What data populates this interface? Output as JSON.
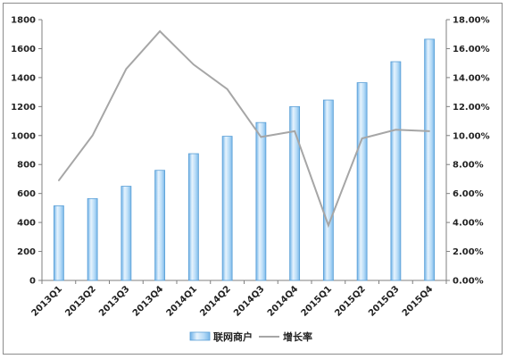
{
  "chart_data": {
    "type": "bar",
    "categories": [
      "2013Q1",
      "2013Q2",
      "2013Q3",
      "2013Q4",
      "2014Q1",
      "2014Q2",
      "2014Q3",
      "2014Q4",
      "2015Q1",
      "2015Q2",
      "2015Q3",
      "2015Q4"
    ],
    "series": [
      {
        "name": "联网商户",
        "type": "bar",
        "axis": "left",
        "color": "#9dcbf0",
        "values": [
          515,
          565,
          650,
          760,
          875,
          995,
          1090,
          1200,
          1245,
          1365,
          1510,
          1665
        ]
      },
      {
        "name": "增长率",
        "type": "line",
        "axis": "right",
        "color": "#a6a6a6",
        "values": [
          6.9,
          10.0,
          14.6,
          17.2,
          14.9,
          13.2,
          9.9,
          10.3,
          3.8,
          9.8,
          10.4,
          10.3
        ]
      }
    ],
    "ylim": [
      0,
      1800
    ],
    "y_ticks": [
      "0",
      "200",
      "400",
      "600",
      "800",
      "1000",
      "1200",
      "1400",
      "1600",
      "1800"
    ],
    "y2lim": [
      0,
      18
    ],
    "y2_ticks": [
      "0.00%",
      "2.00%",
      "4.00%",
      "6.00%",
      "8.00%",
      "10.00%",
      "12.00%",
      "14.00%",
      "16.00%",
      "18.00%"
    ],
    "legend_position": "bottom",
    "grid": false
  }
}
